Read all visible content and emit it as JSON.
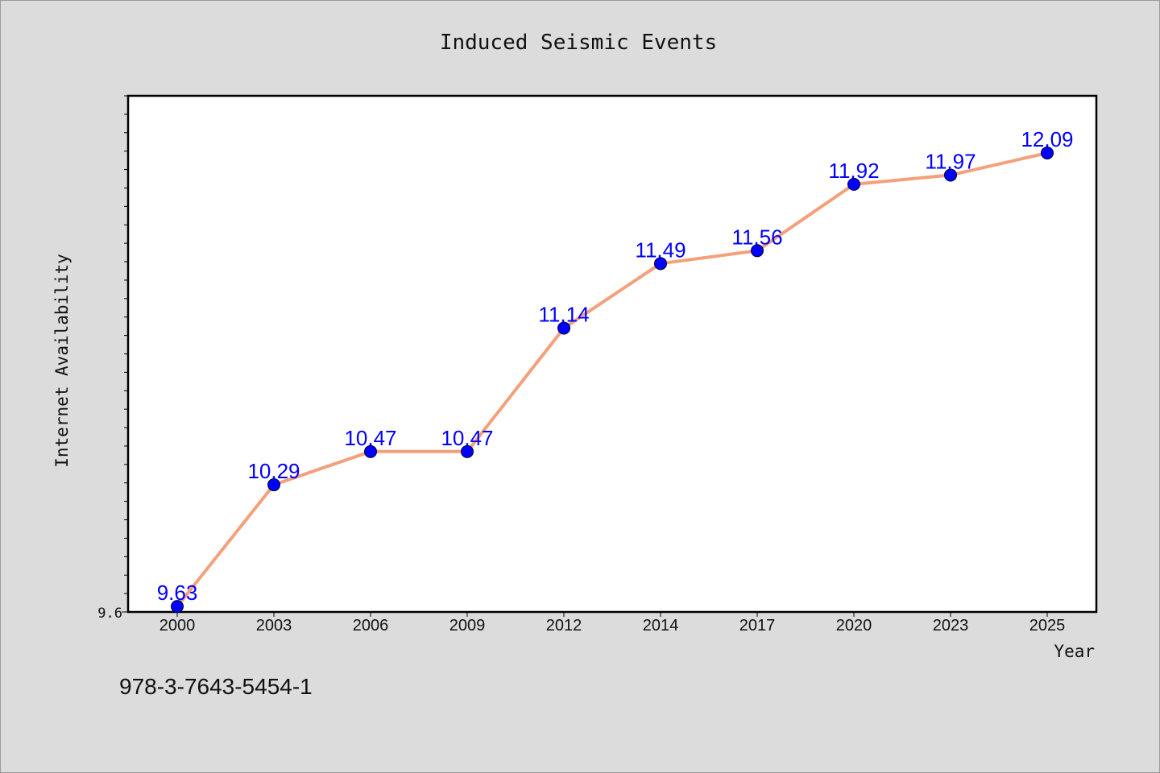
{
  "chart_data": {
    "type": "line",
    "title": "Induced Seismic Events",
    "xlabel": "Year",
    "ylabel": "Internet Availability",
    "categories": [
      "2000",
      "2003",
      "2006",
      "2009",
      "2012",
      "2014",
      "2017",
      "2020",
      "2023",
      "2025"
    ],
    "series": [
      {
        "values": [
          9.63,
          10.29,
          10.47,
          10.47,
          11.14,
          11.49,
          11.56,
          11.92,
          11.97,
          12.09
        ]
      }
    ],
    "data_labels": [
      "9.63",
      "10.29",
      "10.47",
      "10.47",
      "11.14",
      "11.49",
      "11.56",
      "11.92",
      "11.97",
      "12.09"
    ],
    "y_tick_labels": [
      "9.6"
    ],
    "ylim": [
      9.6,
      12.4
    ],
    "grid": false,
    "line_color": "#f4a07a",
    "marker_color": "#0000ff",
    "label_color": "#0000ff"
  },
  "footer": {
    "isbn": "978-3-7643-5454-1"
  }
}
